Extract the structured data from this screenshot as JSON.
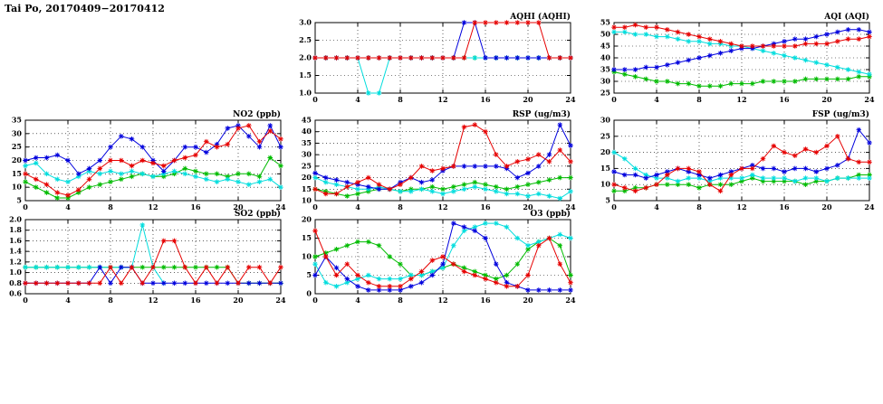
{
  "title": "Tai Po, 20170409−20170412",
  "colors": {
    "red": "#e60000",
    "green": "#00bb00",
    "blue": "#0000dd",
    "cyan": "#00dddd"
  },
  "chart_data": [
    {
      "id": "aqhi",
      "type": "line",
      "title": "AQHI (AQHI)",
      "xlabel": "",
      "ylabel": "",
      "grid": true,
      "legend": "none",
      "x": {
        "min": 0,
        "max": 24,
        "ticks": [
          0,
          4,
          8,
          12,
          16,
          20,
          24
        ]
      },
      "y": {
        "min": 1.0,
        "max": 3.0,
        "ticks": [
          1.0,
          1.5,
          2.0,
          2.5,
          3.0
        ],
        "tick_labels": [
          "1.0",
          "1.5",
          "2.0",
          "2.5",
          "3.0"
        ]
      },
      "series": [
        {
          "name": "green",
          "color_key": "green",
          "values": [
            2,
            2,
            2,
            2,
            2,
            2,
            2,
            2,
            2,
            2,
            2,
            2,
            2,
            2,
            2,
            2,
            2,
            2,
            2,
            2,
            2,
            2,
            2,
            2,
            2
          ]
        },
        {
          "name": "cyan",
          "color_key": "cyan",
          "values": [
            2,
            2,
            2,
            2,
            2,
            1,
            1,
            2,
            2,
            2,
            2,
            2,
            2,
            2,
            2,
            2,
            2,
            2,
            2,
            2,
            2,
            2,
            2,
            2,
            2
          ]
        },
        {
          "name": "blue",
          "color_key": "blue",
          "values": [
            2,
            2,
            2,
            2,
            2,
            2,
            2,
            2,
            2,
            2,
            2,
            2,
            2,
            2,
            3,
            3,
            2,
            2,
            2,
            2,
            2,
            2,
            2,
            2,
            2
          ]
        },
        {
          "name": "red",
          "color_key": "red",
          "values": [
            2,
            2,
            2,
            2,
            2,
            2,
            2,
            2,
            2,
            2,
            2,
            2,
            2,
            2,
            2,
            3,
            3,
            3,
            3,
            3,
            3,
            3,
            2,
            2,
            2
          ]
        }
      ]
    },
    {
      "id": "aqi",
      "type": "line",
      "title": "AQI (AQI)",
      "xlabel": "",
      "ylabel": "",
      "grid": true,
      "legend": "none",
      "x": {
        "min": 0,
        "max": 24,
        "ticks": [
          0,
          4,
          8,
          12,
          16,
          20,
          24
        ]
      },
      "y": {
        "min": 25,
        "max": 55,
        "ticks": [
          25,
          30,
          35,
          40,
          45,
          50,
          55
        ],
        "tick_labels": [
          "25",
          "30",
          "35",
          "40",
          "45",
          "50",
          "55"
        ]
      },
      "series": [
        {
          "name": "green",
          "color_key": "green",
          "values": [
            34,
            33,
            32,
            31,
            30,
            30,
            29,
            29,
            28,
            28,
            28,
            29,
            29,
            29,
            30,
            30,
            30,
            30,
            31,
            31,
            31,
            31,
            31,
            32,
            32
          ]
        },
        {
          "name": "cyan",
          "color_key": "cyan",
          "values": [
            51,
            51,
            50,
            50,
            49,
            49,
            48,
            47,
            47,
            46,
            46,
            45,
            45,
            44,
            43,
            42,
            41,
            40,
            39,
            38,
            37,
            36,
            35,
            34,
            33
          ]
        },
        {
          "name": "blue",
          "color_key": "blue",
          "values": [
            35,
            35,
            35,
            36,
            36,
            37,
            38,
            39,
            40,
            41,
            42,
            43,
            44,
            44,
            45,
            46,
            47,
            48,
            48,
            49,
            50,
            51,
            52,
            52,
            51
          ]
        },
        {
          "name": "red",
          "color_key": "red",
          "values": [
            53,
            53,
            54,
            53,
            53,
            52,
            51,
            50,
            49,
            48,
            47,
            46,
            45,
            45,
            45,
            45,
            45,
            45,
            46,
            46,
            46,
            47,
            48,
            48,
            49
          ]
        }
      ]
    },
    {
      "id": "no2",
      "type": "line",
      "title": "NO2 (ppb)",
      "xlabel": "",
      "ylabel": "",
      "grid": true,
      "legend": "none",
      "x": {
        "min": 0,
        "max": 24,
        "ticks": [
          0,
          4,
          8,
          12,
          16,
          20,
          24
        ]
      },
      "y": {
        "min": 5,
        "max": 35,
        "ticks": [
          5,
          10,
          15,
          20,
          25,
          30,
          35
        ],
        "tick_labels": [
          "5",
          "10",
          "15",
          "20",
          "25",
          "30",
          "35"
        ]
      },
      "series": [
        {
          "name": "green",
          "color_key": "green",
          "values": [
            12,
            10,
            8,
            6,
            6,
            8,
            10,
            11,
            12,
            13,
            14,
            15,
            14,
            14,
            15,
            17,
            16,
            15,
            15,
            14,
            15,
            15,
            14,
            21,
            18
          ]
        },
        {
          "name": "cyan",
          "color_key": "cyan",
          "values": [
            18,
            19,
            15,
            13,
            12,
            14,
            16,
            15,
            16,
            15,
            16,
            15,
            14,
            15,
            16,
            15,
            14,
            13,
            12,
            13,
            12,
            11,
            12,
            13,
            10
          ]
        },
        {
          "name": "blue",
          "color_key": "blue",
          "values": [
            20,
            21,
            21,
            22,
            20,
            15,
            17,
            20,
            25,
            29,
            28,
            25,
            20,
            16,
            20,
            25,
            25,
            23,
            26,
            32,
            33,
            29,
            25,
            33,
            25
          ]
        },
        {
          "name": "red",
          "color_key": "red",
          "values": [
            15,
            13,
            11,
            8,
            7,
            9,
            13,
            17,
            20,
            20,
            18,
            20,
            19,
            18,
            20,
            21,
            22,
            27,
            25,
            26,
            32,
            33,
            27,
            31,
            28
          ]
        }
      ]
    },
    {
      "id": "rsp",
      "type": "line",
      "title": "RSP (ug/m3)",
      "xlabel": "",
      "ylabel": "",
      "grid": true,
      "legend": "none",
      "x": {
        "min": 0,
        "max": 24,
        "ticks": [
          0,
          4,
          8,
          12,
          16,
          20,
          24
        ]
      },
      "y": {
        "min": 10,
        "max": 45,
        "ticks": [
          10,
          15,
          20,
          25,
          30,
          35,
          40,
          45
        ],
        "tick_labels": [
          "10",
          "15",
          "20",
          "25",
          "30",
          "35",
          "40",
          "45"
        ]
      },
      "series": [
        {
          "name": "green",
          "color_key": "green",
          "values": [
            15,
            14,
            13,
            12,
            13,
            14,
            15,
            15,
            14,
            15,
            15,
            16,
            15,
            16,
            17,
            18,
            17,
            16,
            15,
            16,
            17,
            18,
            19,
            20,
            20
          ]
        },
        {
          "name": "cyan",
          "color_key": "cyan",
          "values": [
            20,
            18,
            17,
            16,
            15,
            15,
            16,
            15,
            14,
            14,
            15,
            14,
            13,
            14,
            15,
            16,
            15,
            14,
            13,
            13,
            12,
            13,
            12,
            11,
            14
          ]
        },
        {
          "name": "blue",
          "color_key": "blue",
          "values": [
            22,
            20,
            19,
            18,
            17,
            16,
            15,
            15,
            18,
            20,
            18,
            19,
            23,
            25,
            25,
            25,
            25,
            25,
            24,
            20,
            22,
            25,
            30,
            43,
            34
          ]
        },
        {
          "name": "red",
          "color_key": "red",
          "values": [
            15,
            13,
            13,
            16,
            18,
            20,
            17,
            15,
            17,
            20,
            25,
            23,
            24,
            25,
            42,
            43,
            40,
            30,
            25,
            27,
            28,
            30,
            27,
            32,
            27
          ]
        }
      ]
    },
    {
      "id": "fsp",
      "type": "line",
      "title": "FSP (ug/m3)",
      "xlabel": "",
      "ylabel": "",
      "grid": true,
      "legend": "none",
      "x": {
        "min": 0,
        "max": 24,
        "ticks": [
          0,
          4,
          8,
          12,
          16,
          20,
          24
        ]
      },
      "y": {
        "min": 5,
        "max": 30,
        "ticks": [
          5,
          10,
          15,
          20,
          25,
          30
        ],
        "tick_labels": [
          "5",
          "10",
          "15",
          "20",
          "25",
          "30"
        ]
      },
      "series": [
        {
          "name": "green",
          "color_key": "green",
          "values": [
            8,
            8,
            9,
            9,
            10,
            10,
            10,
            10,
            9,
            10,
            10,
            10,
            11,
            12,
            11,
            11,
            11,
            11,
            10,
            11,
            11,
            12,
            12,
            13,
            13
          ]
        },
        {
          "name": "cyan",
          "color_key": "cyan",
          "values": [
            20,
            18,
            15,
            13,
            12,
            12,
            11,
            12,
            12,
            11,
            12,
            12,
            12,
            13,
            12,
            12,
            12,
            11,
            12,
            12,
            11,
            12,
            12,
            12,
            12
          ]
        },
        {
          "name": "blue",
          "color_key": "blue",
          "values": [
            14,
            13,
            13,
            12,
            13,
            14,
            15,
            14,
            13,
            12,
            13,
            14,
            15,
            16,
            15,
            15,
            14,
            15,
            15,
            14,
            15,
            16,
            18,
            27,
            23
          ]
        },
        {
          "name": "red",
          "color_key": "red",
          "values": [
            10,
            9,
            8,
            9,
            10,
            13,
            15,
            15,
            14,
            10,
            8,
            13,
            15,
            15,
            18,
            22,
            20,
            19,
            21,
            20,
            22,
            25,
            18,
            17,
            17
          ]
        }
      ]
    },
    {
      "id": "so2",
      "type": "line",
      "title": "SO2 (ppb)",
      "xlabel": "",
      "ylabel": "",
      "grid": true,
      "legend": "none",
      "x": {
        "min": 0,
        "max": 24,
        "ticks": [
          0,
          4,
          8,
          12,
          16,
          20,
          24
        ]
      },
      "y": {
        "min": 0.6,
        "max": 2.0,
        "ticks": [
          0.6,
          0.8,
          1.0,
          1.2,
          1.4,
          1.6,
          1.8,
          2.0
        ],
        "tick_labels": [
          "0.6",
          "0.8",
          "1.0",
          "1.2",
          "1.4",
          "1.6",
          "1.8",
          "2.0"
        ]
      },
      "series": [
        {
          "name": "green",
          "color_key": "green",
          "values": [
            1.1,
            1.1,
            1.1,
            1.1,
            1.1,
            1.1,
            1.1,
            1.1,
            1.1,
            1.1,
            1.1,
            1.1,
            1.1,
            1.1,
            1.1,
            1.1,
            1.1,
            1.1,
            1.1,
            1.1,
            0.8,
            0.8,
            0.8,
            0.8,
            0.8
          ]
        },
        {
          "name": "cyan",
          "color_key": "cyan",
          "values": [
            1.1,
            1.1,
            1.1,
            1.1,
            1.1,
            1.1,
            1.1,
            1.1,
            1.1,
            1.1,
            1.1,
            1.9,
            1.1,
            0.8
          ]
        },
        {
          "name": "blue",
          "color_key": "blue",
          "values": [
            0.8,
            0.8,
            0.8,
            0.8,
            0.8,
            0.8,
            0.8,
            1.1,
            0.8,
            1.1,
            1.1,
            0.8,
            0.8,
            0.8,
            0.8,
            0.8,
            0.8,
            0.8,
            0.8,
            0.8,
            0.8,
            0.8,
            0.8,
            0.8,
            0.8
          ]
        },
        {
          "name": "red",
          "color_key": "red",
          "values": [
            0.8,
            0.8,
            0.8,
            0.8,
            0.8,
            0.8,
            0.8,
            0.8,
            1.1,
            0.8,
            1.1,
            0.8,
            1.1,
            1.6,
            1.6,
            1.1,
            0.8,
            1.1,
            0.8,
            1.1,
            0.8,
            1.1,
            1.1,
            0.8,
            1.1
          ]
        }
      ]
    },
    {
      "id": "o3",
      "type": "line",
      "title": "O3 (ppb)",
      "xlabel": "",
      "ylabel": "",
      "grid": true,
      "legend": "none",
      "x": {
        "min": 0,
        "max": 24,
        "ticks": [
          0,
          4,
          8,
          12,
          16,
          20,
          24
        ]
      },
      "y": {
        "min": 0,
        "max": 20,
        "ticks": [
          0,
          5,
          10,
          15,
          20
        ],
        "tick_labels": [
          "0",
          "5",
          "10",
          "15",
          "20"
        ]
      },
      "series": [
        {
          "name": "green",
          "color_key": "green",
          "values": [
            10,
            11,
            12,
            13,
            14,
            14,
            13,
            10,
            8,
            5,
            5,
            6,
            7,
            8,
            7,
            6,
            5,
            4,
            5,
            8,
            12,
            14,
            15,
            13,
            5
          ]
        },
        {
          "name": "cyan",
          "color_key": "cyan",
          "values": [
            8,
            3,
            2,
            3,
            4,
            5,
            4,
            4,
            4,
            5,
            5,
            6,
            7,
            13,
            17,
            18,
            19,
            19,
            18,
            15,
            13,
            14,
            15,
            16,
            15
          ]
        },
        {
          "name": "blue",
          "color_key": "blue",
          "values": [
            5,
            10,
            7,
            4,
            2,
            1,
            1,
            1,
            1,
            2,
            3,
            5,
            8,
            19,
            18,
            17,
            15,
            8,
            3,
            2,
            1,
            1,
            1,
            1,
            1
          ]
        },
        {
          "name": "red",
          "color_key": "red",
          "values": [
            17,
            10,
            5,
            8,
            5,
            3,
            2,
            2,
            2,
            4,
            6,
            9,
            10,
            8,
            6,
            5,
            4,
            3,
            2,
            2,
            5,
            13,
            15,
            8,
            3
          ]
        }
      ]
    }
  ]
}
